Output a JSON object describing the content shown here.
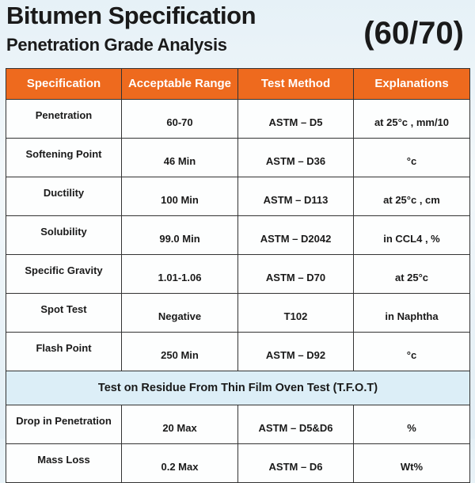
{
  "title": "Bitumen Specification",
  "subtitle": "Penetration Grade Analysis",
  "grade": "(60/70)",
  "colors": {
    "header_bg": "#ee6a1e",
    "section_bg": "#dceef7"
  },
  "table": {
    "headers": [
      "Specification",
      "Acceptable Range",
      "Test Method",
      "Explanations"
    ],
    "rows": [
      [
        "Penetration",
        "60-70",
        "ASTM – D5",
        "at 25°c , mm/10"
      ],
      [
        "Softening Point",
        "46 Min",
        "ASTM – D36",
        "°c"
      ],
      [
        "Ductility",
        "100 Min",
        "ASTM – D113",
        "at 25°c , cm"
      ],
      [
        "Solubility",
        "99.0 Min",
        "ASTM – D2042",
        "in CCL4 , %"
      ],
      [
        "Specific Gravity",
        "1.01-1.06",
        "ASTM – D70",
        "at 25°c"
      ],
      [
        "Spot Test",
        "Negative",
        "T102",
        "in Naphtha"
      ],
      [
        "Flash Point",
        "250 Min",
        "ASTM – D92",
        "°c"
      ]
    ],
    "section_title": "Test on Residue From Thin Film Oven Test (T.F.O.T)",
    "residue_rows": [
      [
        "Drop in Penetration",
        "20 Max",
        "ASTM – D5&D6",
        "%"
      ],
      [
        "Mass Loss",
        "0.2 Max",
        "ASTM – D6",
        "Wt%"
      ]
    ]
  }
}
